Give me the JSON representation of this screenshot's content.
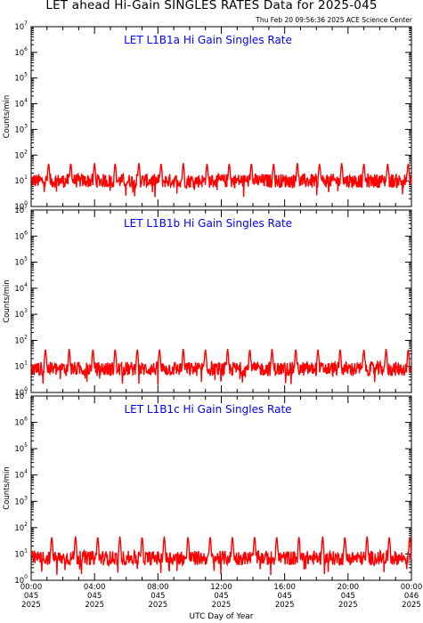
{
  "title": "LET ahead Hi-Gain SINGLES RATES Data for 2025-045",
  "timestamp": "Thu Feb 20 09:56:36 2025 ACE Science Center",
  "xlabel": "UTC Day of Year",
  "colors": {
    "trace": "#ff0000",
    "panel_title": "#0000ff",
    "axes": "#000000"
  },
  "chart_data": [
    {
      "type": "line",
      "title": "LET L1B1a Hi Gain Singles Rate",
      "ylabel": "Counts/min",
      "yscale": "log",
      "ylim": [
        1,
        10000000
      ],
      "yticks": [
        {
          "base": "10",
          "exp": "0"
        },
        {
          "base": "10",
          "exp": "1"
        },
        {
          "base": "10",
          "exp": "2"
        },
        {
          "base": "10",
          "exp": "3"
        },
        {
          "base": "10",
          "exp": "4"
        },
        {
          "base": "10",
          "exp": "5"
        },
        {
          "base": "10",
          "exp": "6"
        },
        {
          "base": "10",
          "exp": "7"
        }
      ],
      "xlim": [
        0,
        24
      ],
      "baseline": 10,
      "spike_peak": 40,
      "spike_hours": [
        1.1,
        2.5,
        4.0,
        5.3,
        6.8,
        8.2,
        9.6,
        11.1,
        12.5,
        13.9,
        15.3,
        16.8,
        18.2,
        19.6,
        21.0,
        22.5,
        23.8
      ]
    },
    {
      "type": "line",
      "title": "LET L1B1b Hi Gain Singles Rate",
      "ylabel": "Counts/min",
      "yscale": "log",
      "ylim": [
        1,
        10000000
      ],
      "yticks": [
        {
          "base": "10",
          "exp": "0"
        },
        {
          "base": "10",
          "exp": "1"
        },
        {
          "base": "10",
          "exp": "2"
        },
        {
          "base": "10",
          "exp": "3"
        },
        {
          "base": "10",
          "exp": "4"
        },
        {
          "base": "10",
          "exp": "5"
        },
        {
          "base": "10",
          "exp": "6"
        },
        {
          "base": "10",
          "exp": "7"
        }
      ],
      "xlim": [
        0,
        24
      ],
      "baseline": 8,
      "spike_peak": 40,
      "spike_hours": [
        0.9,
        2.4,
        3.9,
        5.3,
        6.7,
        8.1,
        9.6,
        11.0,
        12.4,
        13.8,
        15.2,
        16.7,
        18.1,
        19.5,
        21.0,
        22.4,
        23.8
      ]
    },
    {
      "type": "line",
      "title": "LET L1B1c Hi Gain Singles Rate",
      "ylabel": "Counts/min",
      "yscale": "log",
      "ylim": [
        1,
        10000000
      ],
      "yticks": [
        {
          "base": "10",
          "exp": "0"
        },
        {
          "base": "10",
          "exp": "1"
        },
        {
          "base": "10",
          "exp": "2"
        },
        {
          "base": "10",
          "exp": "3"
        },
        {
          "base": "10",
          "exp": "4"
        },
        {
          "base": "10",
          "exp": "5"
        },
        {
          "base": "10",
          "exp": "6"
        },
        {
          "base": "10",
          "exp": "7"
        }
      ],
      "xlim": [
        0,
        24
      ],
      "baseline": 7,
      "spike_peak": 40,
      "spike_hours": [
        1.3,
        2.8,
        4.2,
        5.6,
        7.0,
        8.4,
        9.9,
        11.3,
        12.7,
        14.1,
        15.5,
        16.9,
        18.4,
        19.8,
        21.2,
        22.6,
        23.9
      ]
    }
  ],
  "xticks": [
    {
      "hour": 0,
      "lines": [
        "00:00",
        "045",
        "2025"
      ]
    },
    {
      "hour": 4,
      "lines": [
        "04:00",
        "045",
        "2025"
      ]
    },
    {
      "hour": 8,
      "lines": [
        "08:00",
        "045",
        "2025"
      ]
    },
    {
      "hour": 12,
      "lines": [
        "12:00",
        "045",
        "2025"
      ]
    },
    {
      "hour": 16,
      "lines": [
        "16:00",
        "045",
        "2025"
      ]
    },
    {
      "hour": 20,
      "lines": [
        "20:00",
        "045",
        "2025"
      ]
    },
    {
      "hour": 24,
      "lines": [
        "00:00",
        "046",
        "2025"
      ]
    }
  ]
}
